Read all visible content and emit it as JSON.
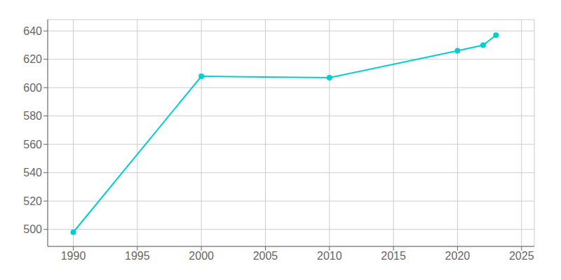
{
  "chart_data": {
    "type": "line",
    "x": [
      1990,
      2000,
      2010,
      2020,
      2022,
      2023
    ],
    "values": [
      498,
      608,
      607,
      626,
      630,
      637
    ],
    "color": "#00CED1",
    "marker": "circle",
    "xlim": [
      1988,
      2026
    ],
    "xticks": [
      1990,
      1995,
      2000,
      2005,
      2010,
      2015,
      2020,
      2025
    ],
    "ylim": [
      488,
      648
    ],
    "yticks": [
      500,
      520,
      540,
      560,
      580,
      600,
      620,
      640
    ],
    "grid": true
  }
}
